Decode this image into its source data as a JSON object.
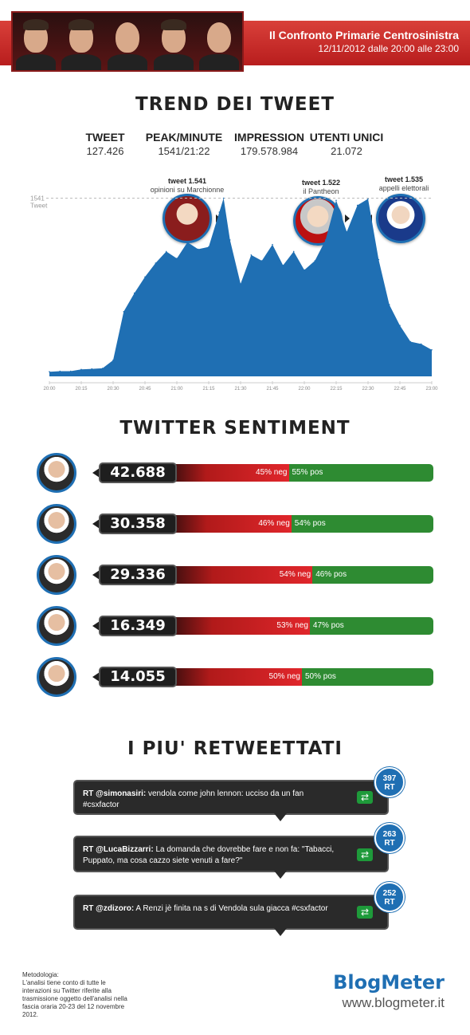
{
  "header": {
    "title": "Il Confronto Primarie Centrosinistra",
    "date": "12/11/2012 dalle 20:00 alle 23:00"
  },
  "trend": {
    "title": "TREND DEI TWEET",
    "stats": [
      {
        "label": "TWEET",
        "value": "127.426"
      },
      {
        "label": "PEAK/MINUTE",
        "value": "1541/21:22"
      },
      {
        "label": "IMPRESSION",
        "value": "179.578.984"
      },
      {
        "label": "UTENTI UNICI",
        "value": "21.072"
      }
    ],
    "peak_label": "1541",
    "peak_unit": "Tweet",
    "annotations": [
      {
        "title": "tweet 1.541",
        "text": "opinioni su Marchionne"
      },
      {
        "title": "tweet 1.522",
        "text": "il Pantheon"
      },
      {
        "title": "tweet 1.535",
        "text": "appelli elettorali"
      }
    ]
  },
  "chart_data": {
    "type": "area",
    "title": "TREND DEI TWEET",
    "xlabel": "",
    "ylabel": "",
    "x": [
      "20:00",
      "20:05",
      "20:10",
      "20:15",
      "20:20",
      "20:25",
      "20:30",
      "20:35",
      "20:40",
      "20:45",
      "20:50",
      "20:55",
      "21:00",
      "21:05",
      "21:10",
      "21:15",
      "21:20",
      "21:22",
      "21:25",
      "21:30",
      "21:35",
      "21:40",
      "21:45",
      "21:50",
      "21:55",
      "22:00",
      "22:05",
      "22:10",
      "22:15",
      "22:20",
      "22:25",
      "22:30",
      "22:35",
      "22:40",
      "22:45",
      "22:50",
      "22:55",
      "23:00"
    ],
    "values": [
      40,
      45,
      45,
      60,
      65,
      70,
      140,
      560,
      720,
      860,
      980,
      1080,
      1020,
      1160,
      1100,
      1120,
      1420,
      1541,
      1180,
      800,
      1050,
      1000,
      1140,
      960,
      1080,
      920,
      1000,
      1180,
      1522,
      1250,
      1480,
      1535,
      1010,
      620,
      440,
      300,
      280,
      230
    ],
    "xticks": [
      "20:00",
      "20:15",
      "20:30",
      "20:45",
      "21:00",
      "21:15",
      "21:30",
      "21:45",
      "22:00",
      "22:15",
      "22:30",
      "22:45",
      "23:00"
    ],
    "ylim": [
      0,
      1600
    ],
    "color": "#1f6fb3",
    "grid": false
  },
  "sentiment": {
    "title": "TWITTER SENTIMENT",
    "rows": [
      {
        "count": "42.688",
        "neg": 45,
        "pos": 55,
        "neg_label": "45% neg",
        "pos_label": "55% pos"
      },
      {
        "count": "30.358",
        "neg": 46,
        "pos": 54,
        "neg_label": "46% neg",
        "pos_label": "54% pos"
      },
      {
        "count": "29.336",
        "neg": 54,
        "pos": 46,
        "neg_label": "54% neg",
        "pos_label": "46% pos"
      },
      {
        "count": "16.349",
        "neg": 53,
        "pos": 47,
        "neg_label": "53% neg",
        "pos_label": "47% pos"
      },
      {
        "count": "14.055",
        "neg": 50,
        "pos": 50,
        "neg_label": "50% neg",
        "pos_label": "50% pos"
      }
    ]
  },
  "retweets": {
    "title": "I PIU' RETWEETTATI",
    "items": [
      {
        "user": "RT @simonasiri:",
        "text": "vendola come john lennon: ucciso da un fan #csxfactor",
        "count": "397",
        "unit": "RT"
      },
      {
        "user": "RT @LucaBizzarri:",
        "text": "La domanda che dovrebbe fare e non fa: \"Tabacci, Puppato, ma cosa cazzo siete venuti a fare?\"",
        "count": "263",
        "unit": "RT"
      },
      {
        "user": "RT @zdizoro:",
        "text": "A Renzi jè finita na s di Vendola sula giacca #csxfactor",
        "count": "252",
        "unit": "RT"
      }
    ]
  },
  "footer": {
    "method": "Metodologia:\nL'analisi tiene conto di tutte le interazioni su Twitter riferite alla trasmissione oggetto dell'analisi nella fascia oraria 20-23 del 12 novembre 2012.",
    "logo": "BlogMeter",
    "site": "www.blogmeter.it"
  }
}
